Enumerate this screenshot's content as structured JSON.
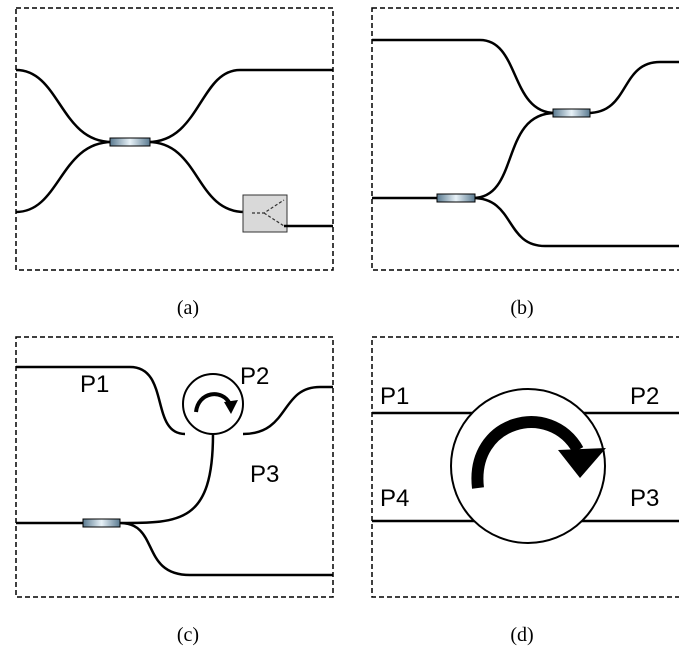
{
  "panels": [
    {
      "caption": "(a)"
    },
    {
      "caption": "(b)"
    },
    {
      "caption": "(c)",
      "labels": [
        "P1",
        "P2",
        "P3"
      ]
    },
    {
      "caption": "(d)",
      "labels": [
        "P1",
        "P2",
        "P4",
        "P3"
      ]
    }
  ]
}
